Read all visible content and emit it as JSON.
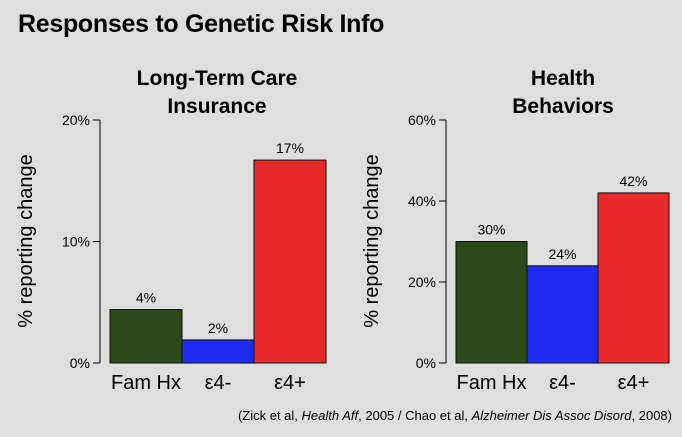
{
  "slide": {
    "title": "Responses to Genetic Risk Info"
  },
  "citation": {
    "part1": "(Zick et al, ",
    "journal1": "Health Aff",
    "part2": ", 2005 / Chao et al, ",
    "journal2": "Alzheimer Dis Assoc Disord",
    "part3": ", 2008)"
  },
  "chart_data": [
    {
      "type": "bar",
      "title_lines": [
        "Long-Term Care",
        "Insurance"
      ],
      "ylabel": "% reporting change",
      "categories": [
        "Fam Hx",
        "ε4-",
        "ε4+"
      ],
      "values": [
        4.4,
        1.9,
        16.7
      ],
      "data_labels": [
        "4%",
        "2%",
        "17%"
      ],
      "ylim": [
        0,
        20
      ],
      "yticks": [
        0,
        10,
        20
      ],
      "ytick_labels": [
        "0%",
        "10%",
        "20%"
      ],
      "colors": [
        "#2a4a1a",
        "#1f2bf0",
        "#e82a2a"
      ],
      "grid": false
    },
    {
      "type": "bar",
      "title_lines": [
        "Health",
        "Behaviors"
      ],
      "ylabel": "% reporting change",
      "categories": [
        "Fam Hx",
        "ε4-",
        "ε4+"
      ],
      "values": [
        30,
        24,
        42
      ],
      "data_labels": [
        "30%",
        "24%",
        "42%"
      ],
      "ylim": [
        0,
        60
      ],
      "yticks": [
        0,
        20,
        40,
        60
      ],
      "ytick_labels": [
        "0%",
        "20%",
        "40%",
        "60%"
      ],
      "colors": [
        "#2a4a1a",
        "#1f2bf0",
        "#e82a2a"
      ],
      "grid": false
    }
  ]
}
